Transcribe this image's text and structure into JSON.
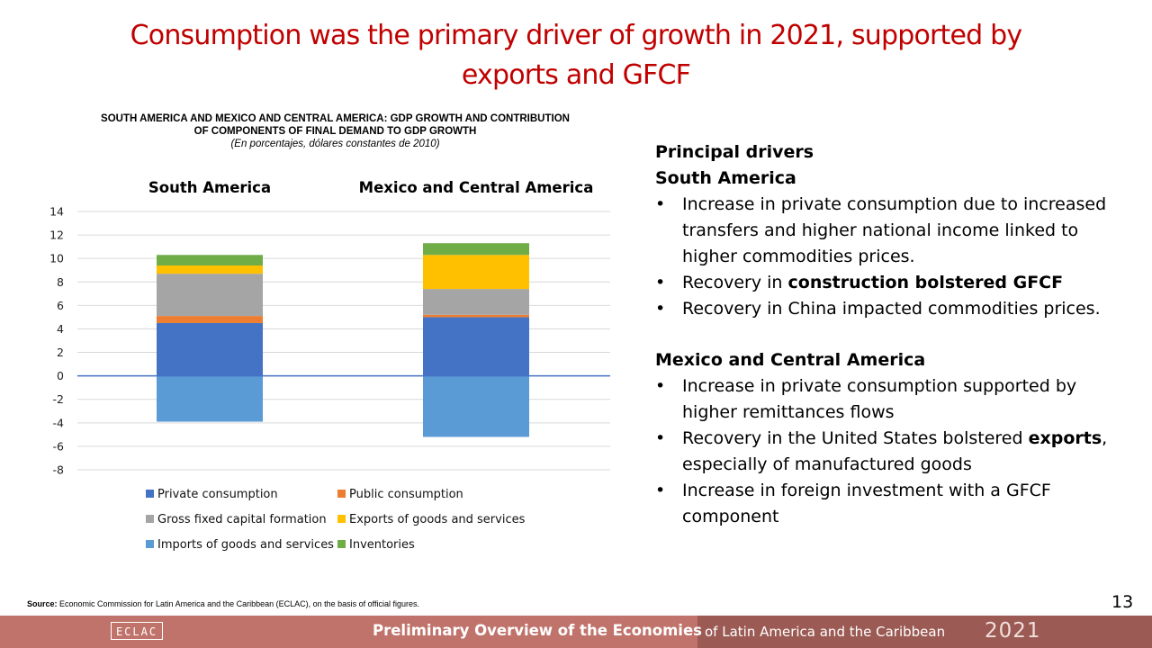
{
  "slide": {
    "title_line1": "Consumption was the primary driver of growth in 2021, supported by",
    "title_line2": "exports and GFCF",
    "page_number": "13"
  },
  "chart_head": {
    "title_line1": "SOUTH AMERICA AND MEXICO AND CENTRAL AMERICA: GDP GROWTH AND CONTRIBUTION",
    "title_line2": "OF COMPONENTS OF FINAL DEMAND TO GDP GROWTH",
    "subtitle": "(En porcentajes, dólares constantes de 2010)"
  },
  "chart_data": {
    "type": "bar",
    "stacked": true,
    "categories": [
      "South America",
      "Mexico and Central America"
    ],
    "ylim": [
      -8,
      14
    ],
    "yticks": [
      "14",
      "12",
      "10",
      "8",
      "6",
      "4",
      "2",
      "0",
      "-2",
      "-4",
      "-6",
      "-8"
    ],
    "ytick_values": [
      14,
      12,
      10,
      8,
      6,
      4,
      2,
      0,
      -2,
      -4,
      -6,
      -8
    ],
    "grid": true,
    "legend_position": "bottom",
    "series": [
      {
        "name": "Private consumption",
        "color": "#4472c4",
        "values": [
          4.5,
          5.0
        ]
      },
      {
        "name": "Public consumption",
        "color": "#ed7d31",
        "values": [
          0.6,
          0.2
        ]
      },
      {
        "name": "Gross fixed capital formation",
        "color": "#a5a5a5",
        "values": [
          3.6,
          2.2
        ]
      },
      {
        "name": "Exports of goods and services",
        "color": "#ffc000",
        "values": [
          0.7,
          2.9
        ]
      },
      {
        "name": "Imports of goods and services",
        "color": "#5b9bd5",
        "values": [
          -3.9,
          -5.2
        ]
      },
      {
        "name": "Inventories",
        "color": "#70ad47",
        "values": [
          0.9,
          1.0
        ]
      }
    ]
  },
  "legend": {
    "private_consumption": "Private consumption",
    "public_consumption": "Public consumption",
    "gfcf": "Gross fixed capital formation",
    "exports": "Exports of goods and services",
    "imports": "Imports of goods and services",
    "inventories": "Inventories"
  },
  "drivers": {
    "heading": "Principal drivers",
    "south_america": {
      "heading": "South America",
      "bullet1": "Increase in private consumption due to increased transfers and higher national income linked to higher commodities prices.",
      "bullet2_prefix": "Recovery in ",
      "bullet2_bold": "construction bolstered GFCF",
      "bullet3": "Recovery in China impacted commodities prices."
    },
    "mexico_ca": {
      "heading": "Mexico and Central America",
      "bullet1": "Increase in private consumption supported by higher remittances flows",
      "bullet2_prefix": "Recovery in the United States bolstered ",
      "bullet2_bold": "exports",
      "bullet2_suffix": ", especially of manufactured goods",
      "bullet3": "Increase in foreign investment with a GFCF component"
    }
  },
  "source": {
    "label": "Source:",
    "text": " Economic Commission for Latin America and the Caribbean (ECLAC), on the basis of official figures."
  },
  "footer": {
    "logo": "ECLAC",
    "main": "Preliminary Overview of the Economies",
    "sub": "of Latin America and the Caribbean",
    "year": "2021"
  }
}
